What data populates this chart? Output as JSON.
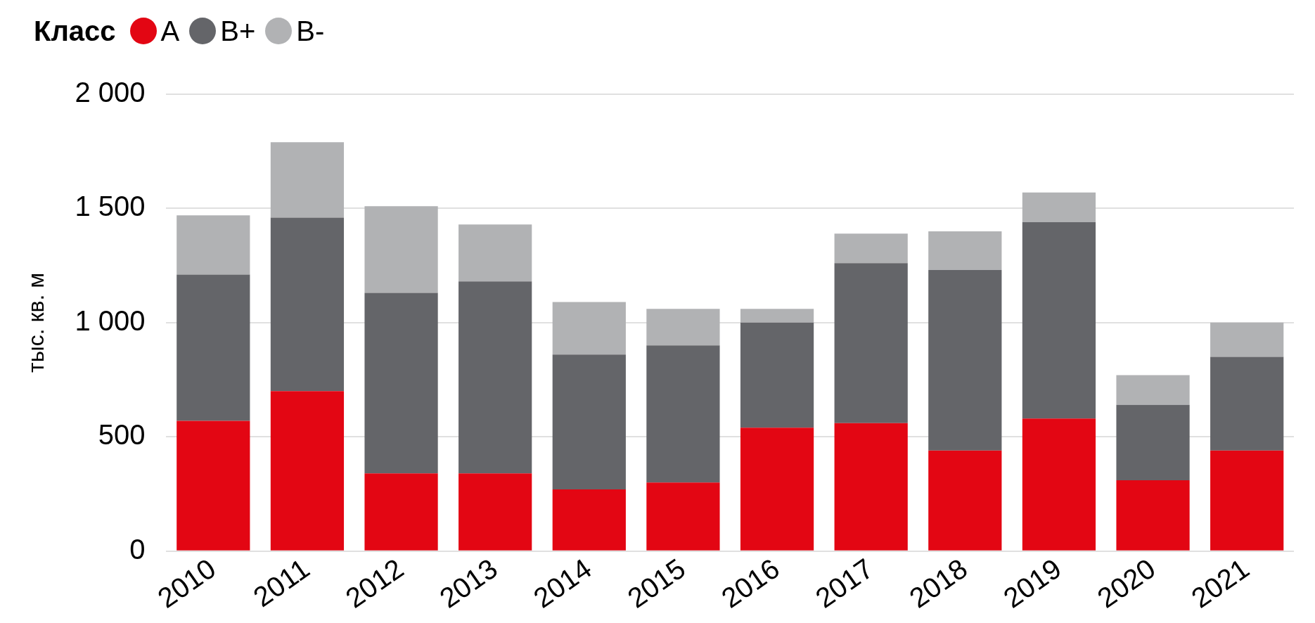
{
  "chart_data": {
    "type": "bar",
    "stacked": true,
    "legend_title": "Класс",
    "legend": "top left",
    "ylabel": "тыс. кв. м",
    "grid": "y",
    "categories": [
      "2010",
      "2011",
      "2012",
      "2013",
      "2014",
      "2015",
      "2016",
      "2017",
      "2018",
      "2019",
      "2020",
      "2021"
    ],
    "ylim": [
      0,
      2000
    ],
    "yticks": [
      0,
      {
        "value": 500,
        "label": "500"
      },
      {
        "value": 1000,
        "label": "1 000"
      },
      {
        "value": 1500,
        "label": "1 500"
      },
      {
        "value": 2000,
        "label": "2 000"
      }
    ],
    "series": [
      {
        "name": "A",
        "color": "#e30613",
        "values": [
          570,
          700,
          340,
          340,
          270,
          300,
          540,
          560,
          440,
          580,
          310,
          440
        ]
      },
      {
        "name": "B+",
        "color": "#646569",
        "values": [
          640,
          760,
          790,
          840,
          590,
          600,
          460,
          700,
          790,
          860,
          330,
          410
        ]
      },
      {
        "name": "B-",
        "color": "#b1b2b4",
        "values": [
          260,
          330,
          380,
          250,
          230,
          160,
          60,
          130,
          170,
          130,
          130,
          150
        ]
      }
    ]
  }
}
